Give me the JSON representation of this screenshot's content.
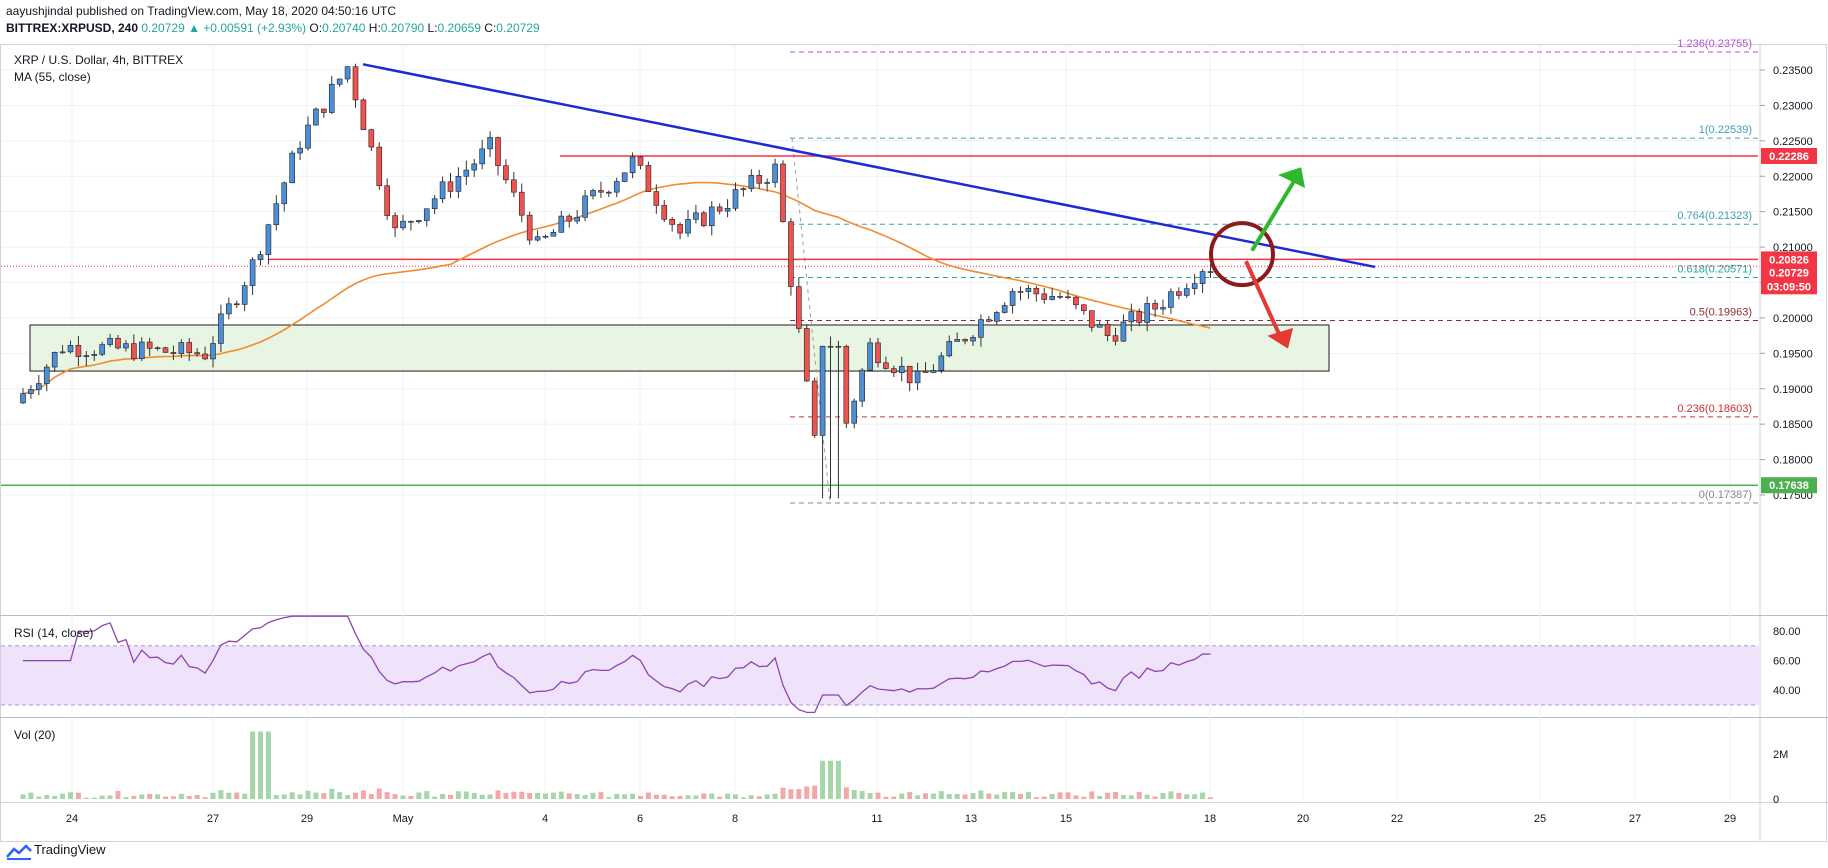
{
  "header": {
    "published": "aayushjindal published on TradingView.com, May 18, 2020 04:50:16 UTC",
    "symbol_line": "BITTREX:XRPUSD, 240",
    "change": "0.20729 ▲ +0.00591 (+2.93%)",
    "o_label": "O:",
    "o_value": "0.20740",
    "h_label": "H:",
    "h_value": "0.20790",
    "l_label": "L:",
    "l_value": "0.20659",
    "c_label": "C:",
    "c_value": "0.20729"
  },
  "colors": {
    "bull": "#26a69a",
    "bear": "#ef5350",
    "trendline": "#1e2bd1",
    "ma": "#f08c2f",
    "resistance": "#f23645",
    "support": "#4caf50",
    "fib_magenta": "#b352d6",
    "fib_teal": "#3fa0b5",
    "fib_brown": "#8a2f2f",
    "fib_red": "#cc3333",
    "fib_grey": "#888888",
    "rsi_band": "#efe3fb",
    "rsi_line": "#8e44ad",
    "zone_fill": "#e8f5e3"
  },
  "footer": {
    "logo_text": "TradingView"
  },
  "chart_data": {
    "type": "candlestick",
    "title": "XRP / U.S. Dollar, 4h, BITTREX",
    "indicator": "MA (55, close)",
    "x_labels": [
      "24",
      "27",
      "29",
      "May",
      "4",
      "6",
      "8",
      "11",
      "13",
      "15",
      "18",
      "20",
      "22",
      "25",
      "27",
      "29"
    ],
    "y_ticks": [
      "0.23500",
      "0.23000",
      "0.22500",
      "0.22000",
      "0.21500",
      "0.21000",
      "0.20500",
      "0.20000",
      "0.19500",
      "0.19000",
      "0.18500",
      "0.18000",
      "0.17500"
    ],
    "ylim": [
      0.173,
      0.2394
    ],
    "price_key_points": [
      [
        "Apr 23",
        0.188
      ],
      [
        "Apr 24",
        0.196
      ],
      [
        "Apr 27",
        0.195
      ],
      [
        "Apr 28",
        0.2075
      ],
      [
        "Apr 29",
        0.225
      ],
      [
        "Apr 30",
        0.2355
      ],
      [
        "May 1",
        0.212
      ],
      [
        "May 3",
        0.224
      ],
      [
        "May 4",
        0.21
      ],
      [
        "May 6",
        0.222
      ],
      [
        "May 7",
        0.212
      ],
      [
        "May 9",
        0.221
      ],
      [
        "May 10",
        0.1745
      ],
      [
        "May 11",
        0.196
      ],
      [
        "May 12",
        0.191
      ],
      [
        "May 14",
        0.204
      ],
      [
        "May 15",
        0.203
      ],
      [
        "May 16",
        0.1975
      ],
      [
        "May 17",
        0.2015
      ],
      [
        "May 18",
        0.2073
      ]
    ],
    "price_labels": [
      {
        "value": "0.22286",
        "color": "#f23645"
      },
      {
        "value": "0.20826",
        "color": "#f23645"
      },
      {
        "value": "0.20729",
        "color": "#f23645"
      },
      {
        "value": "03:09:50",
        "color": "#f23645"
      },
      {
        "value": "0.17638",
        "color": "#4caf50"
      }
    ],
    "fib_levels": [
      {
        "label": "1.236(0.23755)",
        "value": 0.23755,
        "color": "#b352d6"
      },
      {
        "label": "1(0.22539)",
        "value": 0.22539,
        "color": "#3fa0b5"
      },
      {
        "label": "0.764(0.21323)",
        "value": 0.21323,
        "color": "#3fa0b5"
      },
      {
        "label": "0.618(0.20571)",
        "value": 0.20571,
        "color": "#26a69a"
      },
      {
        "label": "0.5(0.19963)",
        "value": 0.19963,
        "color": "#8a2f2f"
      },
      {
        "label": "0.236(0.18603)",
        "value": 0.18603,
        "color": "#cc3333"
      },
      {
        "label": "0(0.17387)",
        "value": 0.17387,
        "color": "#888888"
      }
    ],
    "horizontal_levels": [
      {
        "value": 0.22286,
        "color": "#f23645"
      },
      {
        "value": 0.20826,
        "color": "#f23645"
      },
      {
        "value": 0.17638,
        "color": "#4caf50"
      }
    ],
    "support_zone": [
      0.1925,
      0.199
    ],
    "rsi": {
      "label": "RSI (14, close)",
      "ticks": [
        "80.00",
        "60.00",
        "40.00"
      ],
      "band": [
        30,
        70
      ],
      "last": 62
    },
    "volume": {
      "label": "Vol (20)",
      "ticks": [
        "2M",
        "0"
      ]
    }
  }
}
